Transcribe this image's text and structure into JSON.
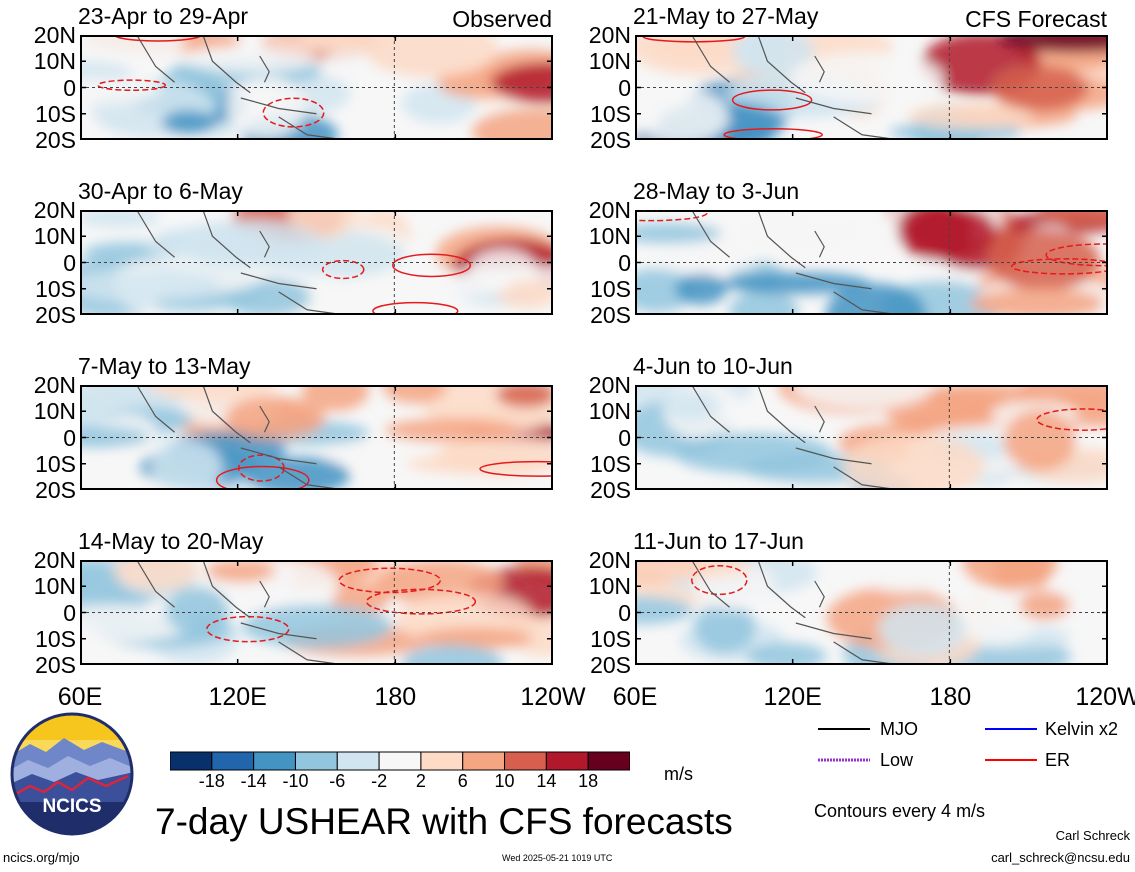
{
  "header": {
    "observed_label": "Observed",
    "forecast_label": "CFS Forecast"
  },
  "chart_data": {
    "type": "heatmap",
    "title": "7-day USHEAR with CFS forecasts",
    "lat_ticks": [
      "20N",
      "10N",
      "0",
      "10S",
      "20S"
    ],
    "lon_ticks": [
      "60E",
      "120E",
      "180",
      "120W"
    ],
    "ylim": [
      -20,
      20
    ],
    "panels": [
      {
        "title": "23-Apr to 29-Apr",
        "source": "Observed"
      },
      {
        "title": "30-Apr to 6-May",
        "source": "Observed"
      },
      {
        "title": "7-May to 13-May",
        "source": "Observed"
      },
      {
        "title": "14-May to 20-May",
        "source": "Observed"
      },
      {
        "title": "21-May to 27-May",
        "source": "CFS Forecast"
      },
      {
        "title": "28-May to 3-Jun",
        "source": "CFS Forecast"
      },
      {
        "title": "4-Jun to 10-Jun",
        "source": "CFS Forecast"
      },
      {
        "title": "11-Jun to 17-Jun",
        "source": "CFS Forecast"
      }
    ],
    "colorbar": {
      "labels": [
        "-18",
        "-14",
        "-10",
        "-6",
        "-2",
        "2",
        "6",
        "10",
        "14",
        "18"
      ],
      "colors": [
        "#08306b",
        "#2166ac",
        "#4393c3",
        "#92c5de",
        "#d1e5f0",
        "#f7f7f7",
        "#fddbc7",
        "#f4a582",
        "#d6604d",
        "#b2182b",
        "#67001f"
      ],
      "units": "m/s"
    }
  },
  "legend": {
    "items": [
      {
        "label": "MJO",
        "color": "#000000"
      },
      {
        "label": "Kelvin x2",
        "color": "#0000ff"
      },
      {
        "label": "Low",
        "color": "#9933cc"
      },
      {
        "label": "ER",
        "color": "#ff0000"
      }
    ],
    "contours_note": "Contours every 4 m/s"
  },
  "logo": {
    "text": "NCICS"
  },
  "footer": {
    "url": "ncics.org/mjo",
    "timestamp": "Wed 2025-05-21 1019 UTC",
    "author": "Carl Schreck",
    "email": "carl_schreck@ncsu.edu"
  }
}
